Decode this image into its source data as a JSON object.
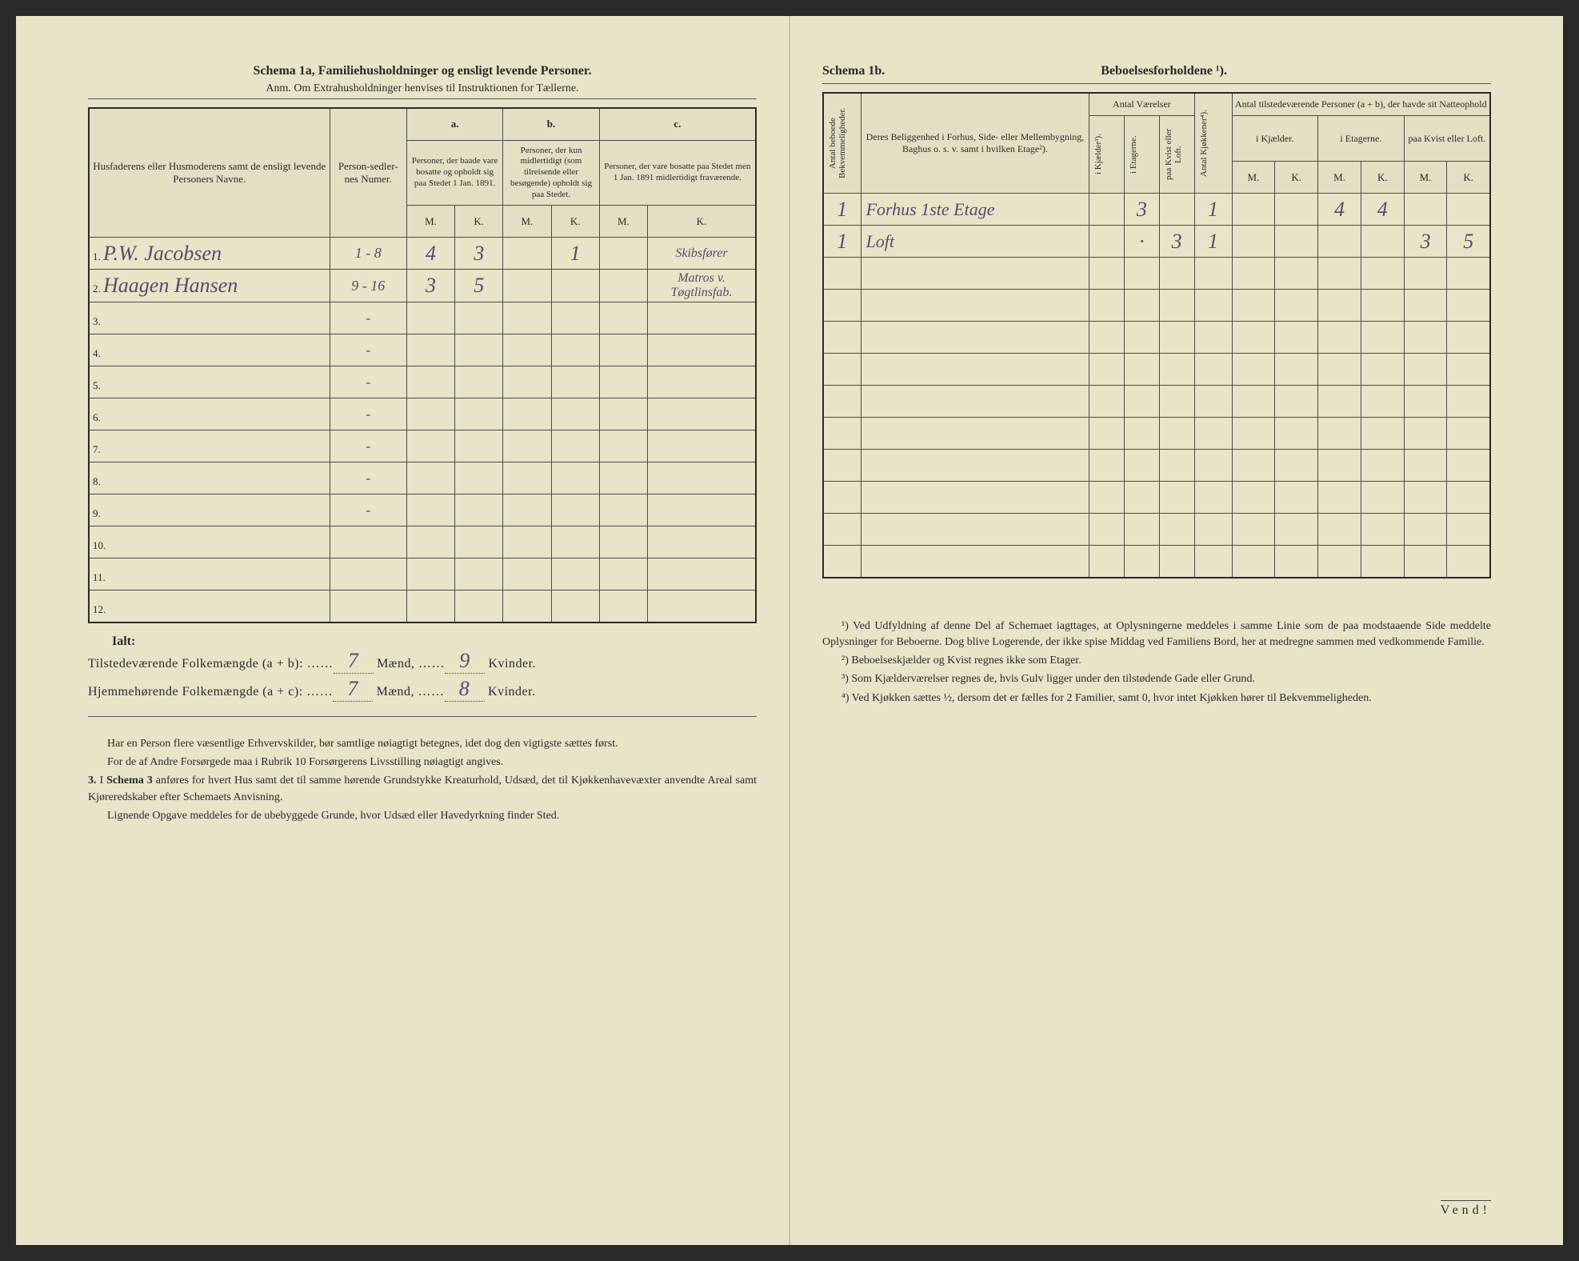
{
  "left": {
    "title": "Schema 1a,   Familiehusholdninger og ensligt levende Personer.",
    "subtitle": "Anm. Om Extrahusholdninger henvises til Instruktionen for Tællerne.",
    "headers": {
      "col1": "Husfaderens eller Husmoderens samt de ensligt levende Personers Navne.",
      "col2": "Person-sedler-nes Numer.",
      "group_a": "a.",
      "group_b": "b.",
      "group_c": "c.",
      "col_a": "Personer, der baade vare bosatte og opholdt sig paa Stedet 1 Jan. 1891.",
      "col_b": "Personer, der kun midlertidigt (som tilreisende eller besøgende) opholdt sig paa Stedet.",
      "col_c": "Personer, der vare bosatte paa Stedet men 1 Jan. 1891 midlertidigt fraværende.",
      "M": "M.",
      "K": "K."
    },
    "rows": [
      {
        "n": "1.",
        "name": "P.W. Jacobsen",
        "num": "1 - 8",
        "aM": "4",
        "aK": "3",
        "bM": "",
        "bK": "1",
        "cM": "",
        "cK": "Skibsfører"
      },
      {
        "n": "2.",
        "name": "Haagen Hansen",
        "num": "9 - 16",
        "aM": "3",
        "aK": "5",
        "bM": "",
        "bK": "",
        "cM": "",
        "cK": "Matros v. Tøgtlinsfab."
      },
      {
        "n": "3.",
        "name": "",
        "num": "-",
        "aM": "",
        "aK": "",
        "bM": "",
        "bK": "",
        "cM": "",
        "cK": ""
      },
      {
        "n": "4.",
        "name": "",
        "num": "-",
        "aM": "",
        "aK": "",
        "bM": "",
        "bK": "",
        "cM": "",
        "cK": ""
      },
      {
        "n": "5.",
        "name": "",
        "num": "-",
        "aM": "",
        "aK": "",
        "bM": "",
        "bK": "",
        "cM": "",
        "cK": ""
      },
      {
        "n": "6.",
        "name": "",
        "num": "-",
        "aM": "",
        "aK": "",
        "bM": "",
        "bK": "",
        "cM": "",
        "cK": ""
      },
      {
        "n": "7.",
        "name": "",
        "num": "-",
        "aM": "",
        "aK": "",
        "bM": "",
        "bK": "",
        "cM": "",
        "cK": ""
      },
      {
        "n": "8.",
        "name": "",
        "num": "-",
        "aM": "",
        "aK": "",
        "bM": "",
        "bK": "",
        "cM": "",
        "cK": ""
      },
      {
        "n": "9.",
        "name": "",
        "num": "-",
        "aM": "",
        "aK": "",
        "bM": "",
        "bK": "",
        "cM": "",
        "cK": ""
      },
      {
        "n": "10.",
        "name": "",
        "num": "",
        "aM": "",
        "aK": "",
        "bM": "",
        "bK": "",
        "cM": "",
        "cK": ""
      },
      {
        "n": "11.",
        "name": "",
        "num": "",
        "aM": "",
        "aK": "",
        "bM": "",
        "bK": "",
        "cM": "",
        "cK": ""
      },
      {
        "n": "12.",
        "name": "",
        "num": "",
        "aM": "",
        "aK": "",
        "bM": "",
        "bK": "",
        "cM": "",
        "cK": ""
      }
    ],
    "ialt": "Ialt:",
    "totals": {
      "line1_label": "Tilstedeværende Folkemængde (a + b):",
      "line1_m": "7",
      "line1_k": "9",
      "line2_label": "Hjemmehørende Folkemængde (a + c):",
      "line2_m": "7",
      "line2_k": "8",
      "maend": "Mænd,",
      "kvinder": "Kvinder."
    },
    "notes": [
      "Har en Person flere væsentlige Erhvervskilder, bør samtlige nøiagtigt betegnes, idet dog den vigtigste sættes først.",
      "For de af Andre Forsørgede maa i Rubrik 10 Forsørgerens Livsstilling nøiagtigt angives.",
      "3. I Schema 3 anføres for hvert Hus samt det til samme hørende Grundstykke Kreaturhold, Udsæd, det til Kjøkkenhavevæxter anvendte Areal samt Kjøreredskaber efter Schemaets Anvisning.",
      "Lignende Opgave meddeles for de ubebyggede Grunde, hvor Udsæd eller Havedyrkning finder Sted."
    ]
  },
  "right": {
    "title_left": "Schema 1b.",
    "title_right": "Beboelsesforholdene ¹).",
    "headers": {
      "col1": "Antal beboede Bekvemmeligheder.",
      "col2": "Deres Beliggenhed i Forhus, Side- eller Mellembygning, Baghus o. s. v. samt i hvilken Etage²).",
      "grp_vaer": "Antal Værelser",
      "v1": "i Kjælder³).",
      "v2": "i Etagerne.",
      "v3": "paa Kvist eller Loft.",
      "col_kjok": "Antal Kjøkkener⁴).",
      "grp_pers": "Antal tilstedeværende Personer (a + b), der havde sit Natteophold",
      "p1": "i Kjælder.",
      "p2": "i Etagerne.",
      "p3": "paa Kvist eller Loft.",
      "M": "M.",
      "K": "K."
    },
    "rows": [
      {
        "c1": "1",
        "c2": "Forhus 1ste Etage",
        "v1": "",
        "v2": "3",
        "v3": "",
        "kj": "1",
        "p1m": "",
        "p1k": "",
        "p2m": "4",
        "p2k": "4",
        "p3m": "",
        "p3k": ""
      },
      {
        "c1": "1",
        "c2": "Loft",
        "v1": "",
        "v2": "·",
        "v3": "3",
        "kj": "1",
        "p1m": "",
        "p1k": "",
        "p2m": "",
        "p2k": "",
        "p3m": "3",
        "p3k": "5"
      },
      {
        "c1": "",
        "c2": "",
        "v1": "",
        "v2": "",
        "v3": "",
        "kj": "",
        "p1m": "",
        "p1k": "",
        "p2m": "",
        "p2k": "",
        "p3m": "",
        "p3k": ""
      },
      {
        "c1": "",
        "c2": "",
        "v1": "",
        "v2": "",
        "v3": "",
        "kj": "",
        "p1m": "",
        "p1k": "",
        "p2m": "",
        "p2k": "",
        "p3m": "",
        "p3k": ""
      },
      {
        "c1": "",
        "c2": "",
        "v1": "",
        "v2": "",
        "v3": "",
        "kj": "",
        "p1m": "",
        "p1k": "",
        "p2m": "",
        "p2k": "",
        "p3m": "",
        "p3k": ""
      },
      {
        "c1": "",
        "c2": "",
        "v1": "",
        "v2": "",
        "v3": "",
        "kj": "",
        "p1m": "",
        "p1k": "",
        "p2m": "",
        "p2k": "",
        "p3m": "",
        "p3k": ""
      },
      {
        "c1": "",
        "c2": "",
        "v1": "",
        "v2": "",
        "v3": "",
        "kj": "",
        "p1m": "",
        "p1k": "",
        "p2m": "",
        "p2k": "",
        "p3m": "",
        "p3k": ""
      },
      {
        "c1": "",
        "c2": "",
        "v1": "",
        "v2": "",
        "v3": "",
        "kj": "",
        "p1m": "",
        "p1k": "",
        "p2m": "",
        "p2k": "",
        "p3m": "",
        "p3k": ""
      },
      {
        "c1": "",
        "c2": "",
        "v1": "",
        "v2": "",
        "v3": "",
        "kj": "",
        "p1m": "",
        "p1k": "",
        "p2m": "",
        "p2k": "",
        "p3m": "",
        "p3k": ""
      },
      {
        "c1": "",
        "c2": "",
        "v1": "",
        "v2": "",
        "v3": "",
        "kj": "",
        "p1m": "",
        "p1k": "",
        "p2m": "",
        "p2k": "",
        "p3m": "",
        "p3k": ""
      },
      {
        "c1": "",
        "c2": "",
        "v1": "",
        "v2": "",
        "v3": "",
        "kj": "",
        "p1m": "",
        "p1k": "",
        "p2m": "",
        "p2k": "",
        "p3m": "",
        "p3k": ""
      },
      {
        "c1": "",
        "c2": "",
        "v1": "",
        "v2": "",
        "v3": "",
        "kj": "",
        "p1m": "",
        "p1k": "",
        "p2m": "",
        "p2k": "",
        "p3m": "",
        "p3k": ""
      }
    ],
    "notes": [
      "¹) Ved Udfyldning af denne Del af Schemaet iagttages, at Oplysningerne meddeles i samme Linie som de paa modstaaende Side meddelte Oplysninger for Beboerne. Dog blive Logerende, der ikke spise Middag ved Familiens Bord, her at medregne sammen med vedkommende Familie.",
      "²) Beboelseskjælder og Kvist regnes ikke som Etager.",
      "³) Som Kjælderværelser regnes de, hvis Gulv ligger under den tilstødende Gade eller Grund.",
      "⁴) Ved Kjøkken sættes ½, dersom det er fælles for 2 Familier, samt 0, hvor intet Kjøkken hører til Bekvemmeligheden."
    ],
    "vend": "Vend!"
  },
  "colors": {
    "paper": "#e8e4c8",
    "ink": "#2a2a2a",
    "handwriting": "#5a4a6a",
    "border": "#4a4a4a"
  },
  "typography": {
    "body_size_pt": 13,
    "title_size_pt": 16,
    "hand_size_pt": 26
  }
}
